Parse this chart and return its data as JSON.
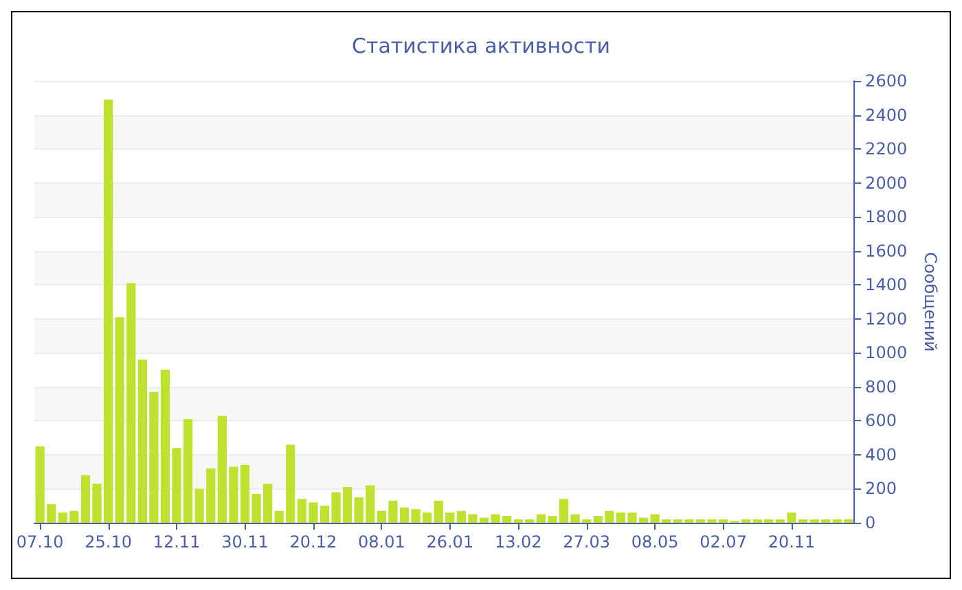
{
  "chart_data": {
    "type": "bar",
    "title": "Статистика активности",
    "ylabel": "Сообщений",
    "categories": [
      "07.10",
      null,
      null,
      null,
      null,
      null,
      "25.10",
      null,
      null,
      null,
      null,
      null,
      "12.11",
      null,
      null,
      null,
      null,
      null,
      "30.11",
      null,
      null,
      null,
      null,
      null,
      "20.12",
      null,
      null,
      null,
      null,
      null,
      "08.01",
      null,
      null,
      null,
      null,
      null,
      "26.01",
      null,
      null,
      null,
      null,
      null,
      "13.02",
      null,
      null,
      null,
      null,
      null,
      "27.03",
      null,
      null,
      null,
      null,
      null,
      "08.05",
      null,
      null,
      null,
      null,
      null,
      "02.07",
      null,
      null,
      null,
      null,
      null,
      "20.11",
      null,
      null,
      null,
      null,
      null
    ],
    "values": [
      450,
      110,
      60,
      70,
      280,
      230,
      2490,
      1210,
      1410,
      960,
      770,
      900,
      440,
      610,
      200,
      320,
      630,
      330,
      340,
      170,
      230,
      70,
      460,
      140,
      120,
      100,
      180,
      210,
      150,
      220,
      70,
      130,
      90,
      80,
      60,
      130,
      60,
      70,
      50,
      30,
      50,
      40,
      20,
      20,
      50,
      40,
      140,
      50,
      20,
      40,
      70,
      60,
      60,
      30,
      50,
      20,
      20,
      20,
      20,
      20,
      20,
      10,
      20,
      20,
      20,
      20,
      60,
      20,
      20,
      20,
      20,
      20
    ],
    "color": "#bfe12f",
    "ylim": [
      0,
      2600
    ],
    "yticks": [
      0,
      200,
      400,
      600,
      800,
      1000,
      1200,
      1400,
      1600,
      1800,
      2000,
      2200,
      2400,
      2600
    ],
    "grid": true
  }
}
